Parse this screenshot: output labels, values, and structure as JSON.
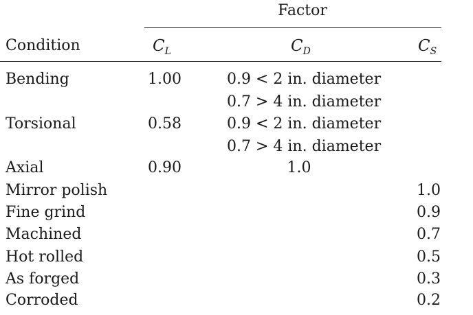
{
  "header": {
    "group_title": "Factor",
    "condition_label": "Condition",
    "cl_symbol": "C",
    "cl_subscript": "L",
    "cd_symbol": "C",
    "cd_subscript": "D",
    "cs_symbol": "C",
    "cs_subscript": "S"
  },
  "rows": [
    {
      "condition": "Bending",
      "cl": "1.00",
      "cd": [
        "0.9 < 2 in. diameter",
        "0.7 > 4 in. diameter"
      ],
      "cs": ""
    },
    {
      "condition": "Torsional",
      "cl": "0.58",
      "cd": [
        "0.9 < 2 in. diameter",
        "0.7 > 4 in. diameter"
      ],
      "cs": ""
    },
    {
      "condition": "Axial",
      "cl": "0.90",
      "cd": [
        "1.0"
      ],
      "cs": ""
    },
    {
      "condition": "Mirror polish",
      "cl": "",
      "cd": [],
      "cs": "1.0"
    },
    {
      "condition": "Fine grind",
      "cl": "",
      "cd": [],
      "cs": "0.9"
    },
    {
      "condition": "Machined",
      "cl": "",
      "cd": [],
      "cs": "0.7"
    },
    {
      "condition": "Hot rolled",
      "cl": "",
      "cd": [],
      "cs": "0.5"
    },
    {
      "condition": "As forged",
      "cl": "",
      "cd": [],
      "cs": "0.3"
    },
    {
      "condition": "Corroded",
      "cl": "",
      "cd": [],
      "cs": "0.2"
    }
  ]
}
